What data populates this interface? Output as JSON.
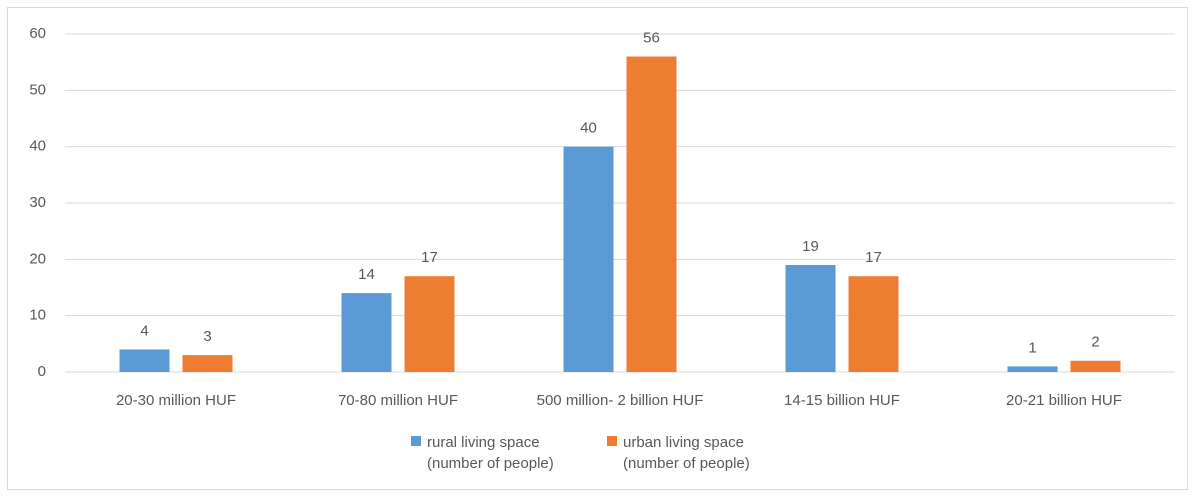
{
  "chart_data": {
    "type": "bar",
    "categories": [
      "20-30 million HUF",
      "70-80 million HUF",
      "500 million- 2 billion HUF",
      "14-15 billion HUF",
      "20-21 billion HUF"
    ],
    "series": [
      {
        "name": "rural living space (number of people)",
        "color": "#5b9bd5",
        "values": [
          4,
          14,
          40,
          19,
          1
        ]
      },
      {
        "name": "urban living space (number of people)",
        "color": "#ed7d31",
        "values": [
          3,
          17,
          56,
          17,
          2
        ]
      }
    ],
    "ylim": [
      0,
      60
    ],
    "yticks": [
      0,
      10,
      20,
      30,
      40,
      50,
      60
    ],
    "grid": true,
    "legend": "bottom"
  }
}
